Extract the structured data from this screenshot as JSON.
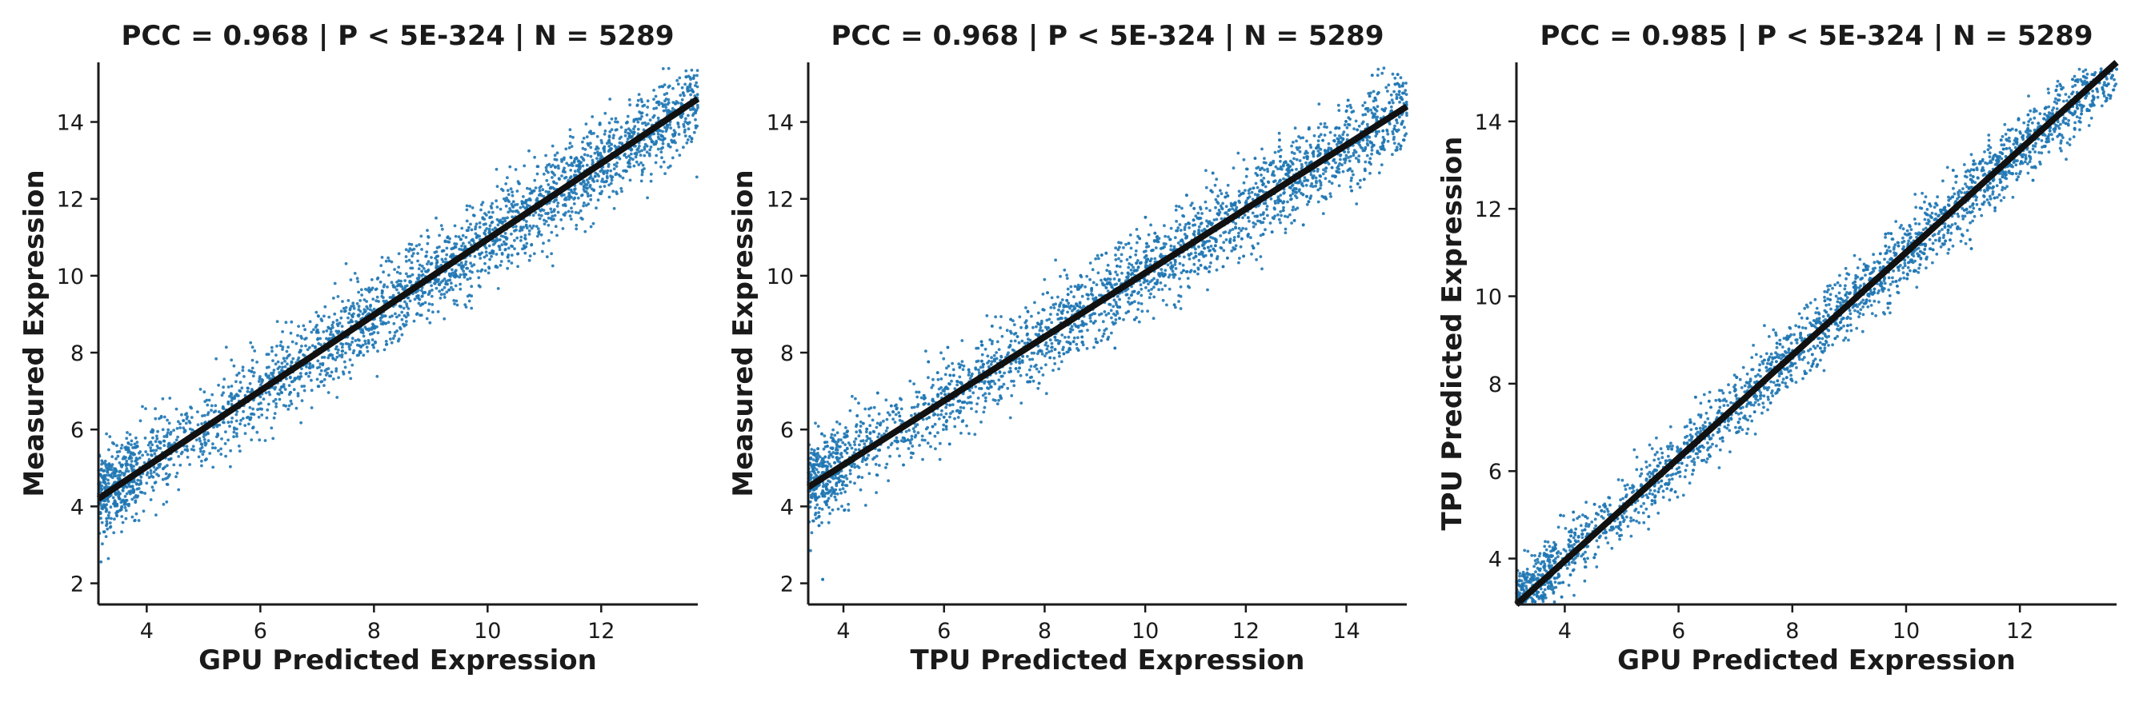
{
  "colors": {
    "points": "#1f77b4",
    "fit_line": "#111111",
    "axes": "#1a1a1a"
  },
  "chart_data": [
    {
      "type": "scatter",
      "title": "PCC =  0.968 | P <  5E-324 | N = 5289",
      "xlabel": "GPU Predicted Expression",
      "ylabel": "Measured Expression",
      "xlim": [
        3.15,
        13.7
      ],
      "ylim": [
        1.45,
        15.55
      ],
      "xticks": [
        4,
        6,
        8,
        10,
        12
      ],
      "yticks": [
        2,
        4,
        6,
        8,
        10,
        12,
        14
      ],
      "n_points": 5289,
      "pcc": 0.968,
      "fit_line": {
        "x": [
          3.15,
          13.7
        ],
        "y": [
          4.2,
          14.6
        ]
      },
      "point_cloud": {
        "x_range": [
          3.15,
          13.7
        ],
        "y_range": [
          1.6,
          15.4
        ],
        "spread_sd": 0.55
      },
      "grid": false,
      "legend": "none"
    },
    {
      "type": "scatter",
      "title": "PCC =  0.968 | P <  5E-324 | N = 5289",
      "xlabel": "TPU Predicted Expression",
      "ylabel": "Measured Expression",
      "xlim": [
        3.3,
        15.2
      ],
      "ylim": [
        1.45,
        15.55
      ],
      "xticks": [
        4,
        6,
        8,
        10,
        12,
        14
      ],
      "yticks": [
        2,
        4,
        6,
        8,
        10,
        12,
        14
      ],
      "n_points": 5289,
      "pcc": 0.968,
      "fit_line": {
        "x": [
          3.3,
          15.2
        ],
        "y": [
          4.5,
          14.4
        ]
      },
      "point_cloud": {
        "x_range": [
          3.3,
          15.2
        ],
        "y_range": [
          1.6,
          15.4
        ],
        "spread_sd": 0.55
      },
      "grid": false,
      "legend": "none"
    },
    {
      "type": "scatter",
      "title": "PCC =  0.985 | P <  5E-324 | N = 5289",
      "xlabel": "GPU Predicted Expression",
      "ylabel": "TPU Predicted Expression",
      "xlim": [
        3.15,
        13.7
      ],
      "ylim": [
        2.95,
        15.35
      ],
      "xticks": [
        4,
        6,
        8,
        10,
        12
      ],
      "yticks": [
        4,
        6,
        8,
        10,
        12,
        14
      ],
      "n_points": 5289,
      "pcc": 0.985,
      "fit_line": {
        "x": [
          3.15,
          13.7
        ],
        "y": [
          2.95,
          15.35
        ]
      },
      "point_cloud": {
        "x_range": [
          3.15,
          13.7
        ],
        "y_range": [
          3.0,
          15.2
        ],
        "spread_sd": 0.38
      },
      "grid": false,
      "legend": "none"
    }
  ]
}
